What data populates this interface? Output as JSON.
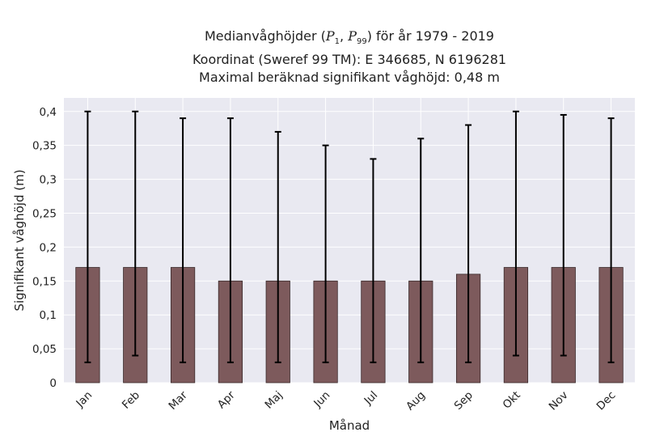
{
  "title": {
    "line1_prefix": "Medianvåghöjder (",
    "p1_symbol": "P",
    "p1_sub": "1",
    "sep": ", ",
    "p99_symbol": "P",
    "p99_sub": "99",
    "line1_suffix": ") för år 1979 - 2019",
    "line2": "Koordinat (Sweref 99 TM): E 346685, N 6196281",
    "line3": "Maximal beräknad signifikant våghöjd: 0,48 m"
  },
  "colors": {
    "plot_bg": "#e9e9f1",
    "grid": "#ffffff",
    "bar_fill": "#7d5a5c",
    "bar_edge": "#3a2a2b",
    "error_bar": "#000000"
  },
  "chart_data": {
    "type": "bar",
    "xlabel": "Månad",
    "ylabel": "Signifikant våghöjd (m)",
    "ylim": [
      0,
      0.42
    ],
    "yticks": [
      0,
      0.05,
      0.1,
      0.15,
      0.2,
      0.25,
      0.3,
      0.35,
      0.4
    ],
    "ytick_labels": [
      "0",
      "0,05",
      "0,1",
      "0,15",
      "0,2",
      "0,25",
      "0,3",
      "0,35",
      "0,4"
    ],
    "grid": true,
    "categories": [
      "Jan",
      "Feb",
      "Mar",
      "Apr",
      "Maj",
      "Jun",
      "Jul",
      "Aug",
      "Sep",
      "Okt",
      "Nov",
      "Dec"
    ],
    "values": [
      0.17,
      0.17,
      0.17,
      0.15,
      0.15,
      0.15,
      0.15,
      0.15,
      0.16,
      0.17,
      0.17,
      0.17
    ],
    "p1": [
      0.03,
      0.04,
      0.03,
      0.03,
      0.03,
      0.03,
      0.03,
      0.03,
      0.03,
      0.04,
      0.04,
      0.03
    ],
    "p99": [
      0.4,
      0.4,
      0.39,
      0.39,
      0.37,
      0.35,
      0.33,
      0.36,
      0.38,
      0.4,
      0.395,
      0.39
    ]
  }
}
